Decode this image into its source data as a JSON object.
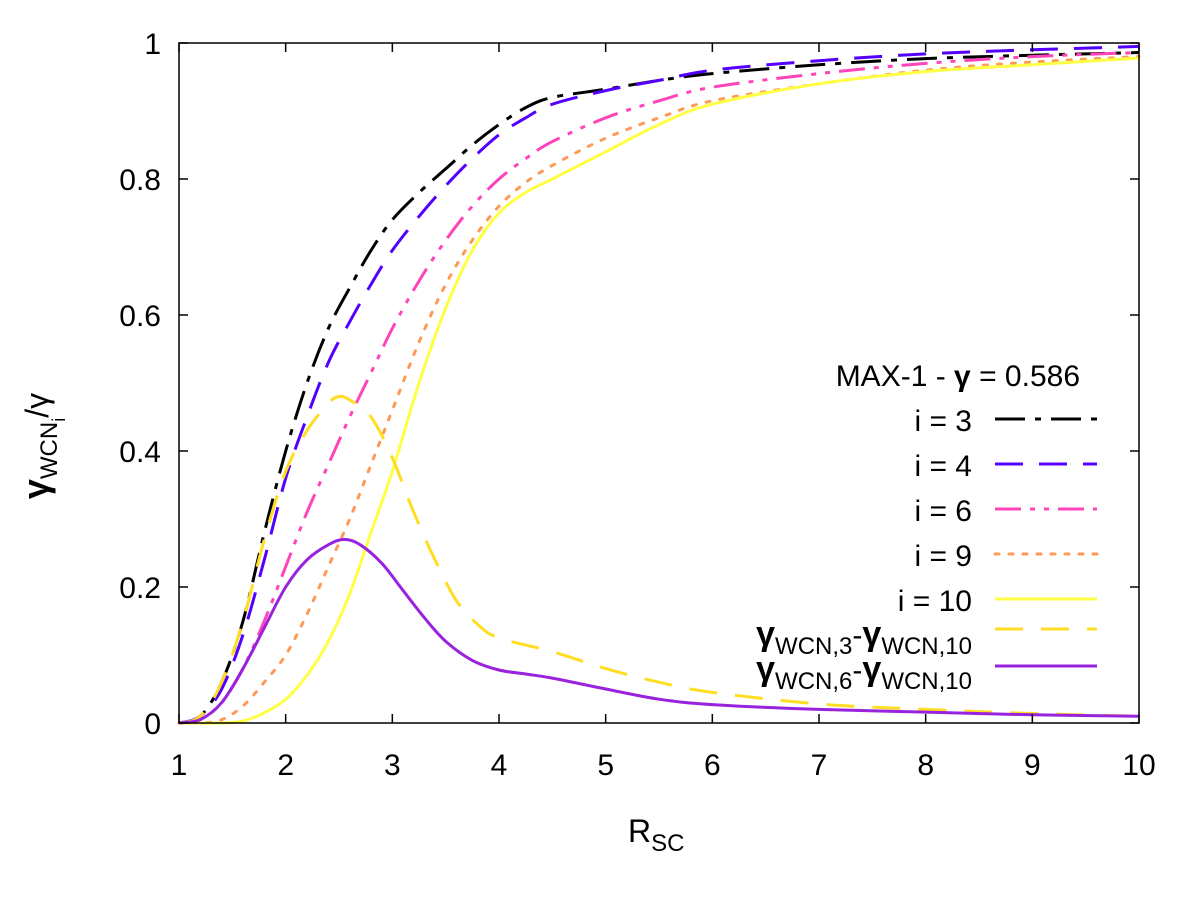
{
  "chart_data": {
    "type": "line",
    "title": "MAX-1 - γ = 0.586",
    "title_parts": {
      "prefix": "MAX-1 - ",
      "gamma": "γ",
      "suffix": " = 0.586"
    },
    "xlabel": {
      "main": "R",
      "sub": "SC"
    },
    "ylabel": {
      "main": "γ",
      "sub": "WCN",
      "subsub": "i",
      "tail": "/γ"
    },
    "xlim": [
      1,
      10
    ],
    "ylim": [
      0,
      1
    ],
    "xticks": [
      1,
      2,
      3,
      4,
      5,
      6,
      7,
      8,
      9,
      10
    ],
    "yticks": [
      0,
      0.2,
      0.4,
      0.6,
      0.8,
      1
    ],
    "ytick_labels": [
      "0",
      "0.2",
      "0.4",
      "0.6",
      "0.8",
      "1"
    ],
    "grid": false,
    "legend_position": "right-middle",
    "series": [
      {
        "name": "i = 3",
        "color": "#000000",
        "dash": "dash-dot",
        "x": [
          1.0,
          1.2,
          1.4,
          1.6,
          1.8,
          2.0,
          2.2,
          2.4,
          2.6,
          2.8,
          3.0,
          3.25,
          3.5,
          3.75,
          4.0,
          4.25,
          4.5,
          5.0,
          5.5,
          6.0,
          7.0,
          8.0,
          9.0,
          10.0
        ],
        "y": [
          0.0,
          0.01,
          0.06,
          0.15,
          0.28,
          0.4,
          0.5,
          0.58,
          0.64,
          0.695,
          0.74,
          0.78,
          0.815,
          0.85,
          0.88,
          0.905,
          0.92,
          0.932,
          0.945,
          0.955,
          0.968,
          0.977,
          0.982,
          0.986
        ]
      },
      {
        "name": "i = 4",
        "color": "#5500ff",
        "dash": "dash",
        "x": [
          1.0,
          1.2,
          1.4,
          1.6,
          1.8,
          2.0,
          2.2,
          2.4,
          2.6,
          2.8,
          3.0,
          3.25,
          3.5,
          3.75,
          4.0,
          4.25,
          4.5,
          5.0,
          5.5,
          6.0,
          7.0,
          8.0,
          9.0,
          10.0
        ],
        "y": [
          0.0,
          0.01,
          0.05,
          0.13,
          0.24,
          0.36,
          0.45,
          0.53,
          0.59,
          0.645,
          0.695,
          0.745,
          0.79,
          0.83,
          0.865,
          0.89,
          0.91,
          0.93,
          0.945,
          0.96,
          0.974,
          0.984,
          0.99,
          0.995
        ]
      },
      {
        "name": "i = 6",
        "color": "#ff44bb",
        "dash": "dash-dot-dot",
        "x": [
          1.0,
          1.2,
          1.4,
          1.6,
          1.8,
          2.0,
          2.2,
          2.4,
          2.6,
          2.8,
          3.0,
          3.25,
          3.5,
          3.75,
          4.0,
          4.25,
          4.5,
          5.0,
          5.5,
          6.0,
          7.0,
          8.0,
          9.0,
          10.0
        ],
        "y": [
          0.0,
          0.005,
          0.03,
          0.08,
          0.15,
          0.23,
          0.31,
          0.38,
          0.45,
          0.515,
          0.58,
          0.65,
          0.71,
          0.76,
          0.8,
          0.83,
          0.855,
          0.89,
          0.915,
          0.935,
          0.955,
          0.97,
          0.98,
          0.986
        ]
      },
      {
        "name": "i = 9",
        "color": "#ff9955",
        "dash": "dot",
        "x": [
          1.0,
          1.2,
          1.4,
          1.6,
          1.8,
          2.0,
          2.2,
          2.4,
          2.6,
          2.8,
          3.0,
          3.25,
          3.5,
          3.75,
          4.0,
          4.25,
          4.5,
          5.0,
          5.5,
          6.0,
          7.0,
          8.0,
          9.0,
          10.0
        ],
        "y": [
          0.0,
          0.0,
          0.005,
          0.025,
          0.06,
          0.1,
          0.16,
          0.23,
          0.3,
          0.38,
          0.46,
          0.56,
          0.645,
          0.71,
          0.76,
          0.795,
          0.82,
          0.86,
          0.89,
          0.915,
          0.94,
          0.96,
          0.972,
          0.98
        ]
      },
      {
        "name": "i = 10",
        "color": "#ffff44",
        "dash": "solid",
        "x": [
          1.0,
          1.2,
          1.4,
          1.6,
          1.8,
          2.0,
          2.2,
          2.4,
          2.6,
          2.8,
          3.0,
          3.25,
          3.5,
          3.75,
          4.0,
          4.25,
          4.5,
          5.0,
          5.5,
          6.0,
          7.0,
          8.0,
          9.0,
          10.0
        ],
        "y": [
          0.0,
          0.0,
          0.0,
          0.003,
          0.015,
          0.035,
          0.07,
          0.12,
          0.19,
          0.28,
          0.37,
          0.5,
          0.61,
          0.695,
          0.75,
          0.78,
          0.8,
          0.84,
          0.88,
          0.91,
          0.94,
          0.958,
          0.968,
          0.978
        ]
      },
      {
        "name": "γWCN,3-γWCN,10",
        "label_parts": {
          "a": "γ",
          "a_sub": "WCN,3",
          "dash": "-",
          "b": "γ",
          "b_sub": "WCN,10"
        },
        "color": "#ffdd22",
        "dash": "long-dash",
        "x": [
          1.0,
          1.2,
          1.4,
          1.6,
          1.8,
          2.0,
          2.2,
          2.4,
          2.5,
          2.6,
          2.8,
          3.0,
          3.2,
          3.4,
          3.6,
          3.8,
          4.0,
          4.5,
          5.0,
          5.5,
          6.0,
          7.0,
          8.0,
          9.0,
          10.0
        ],
        "y": [
          0.0,
          0.01,
          0.06,
          0.15,
          0.27,
          0.37,
          0.43,
          0.47,
          0.48,
          0.475,
          0.45,
          0.39,
          0.31,
          0.24,
          0.18,
          0.145,
          0.125,
          0.105,
          0.08,
          0.06,
          0.045,
          0.028,
          0.02,
          0.014,
          0.01
        ]
      },
      {
        "name": "γWCN,6-γWCN,10",
        "label_parts": {
          "a": "γ",
          "a_sub": "WCN,6",
          "dash": "-",
          "b": "γ",
          "b_sub": "WCN,10"
        },
        "color": "#9922dd",
        "dash": "solid",
        "x": [
          1.0,
          1.2,
          1.4,
          1.6,
          1.8,
          2.0,
          2.2,
          2.4,
          2.55,
          2.7,
          2.9,
          3.1,
          3.3,
          3.5,
          3.75,
          4.0,
          4.25,
          4.5,
          5.0,
          5.5,
          6.0,
          7.0,
          8.0,
          9.0,
          10.0
        ],
        "y": [
          0.0,
          0.005,
          0.03,
          0.08,
          0.14,
          0.2,
          0.24,
          0.262,
          0.27,
          0.262,
          0.235,
          0.195,
          0.155,
          0.12,
          0.092,
          0.078,
          0.072,
          0.066,
          0.05,
          0.035,
          0.027,
          0.02,
          0.016,
          0.012,
          0.01
        ]
      }
    ]
  }
}
